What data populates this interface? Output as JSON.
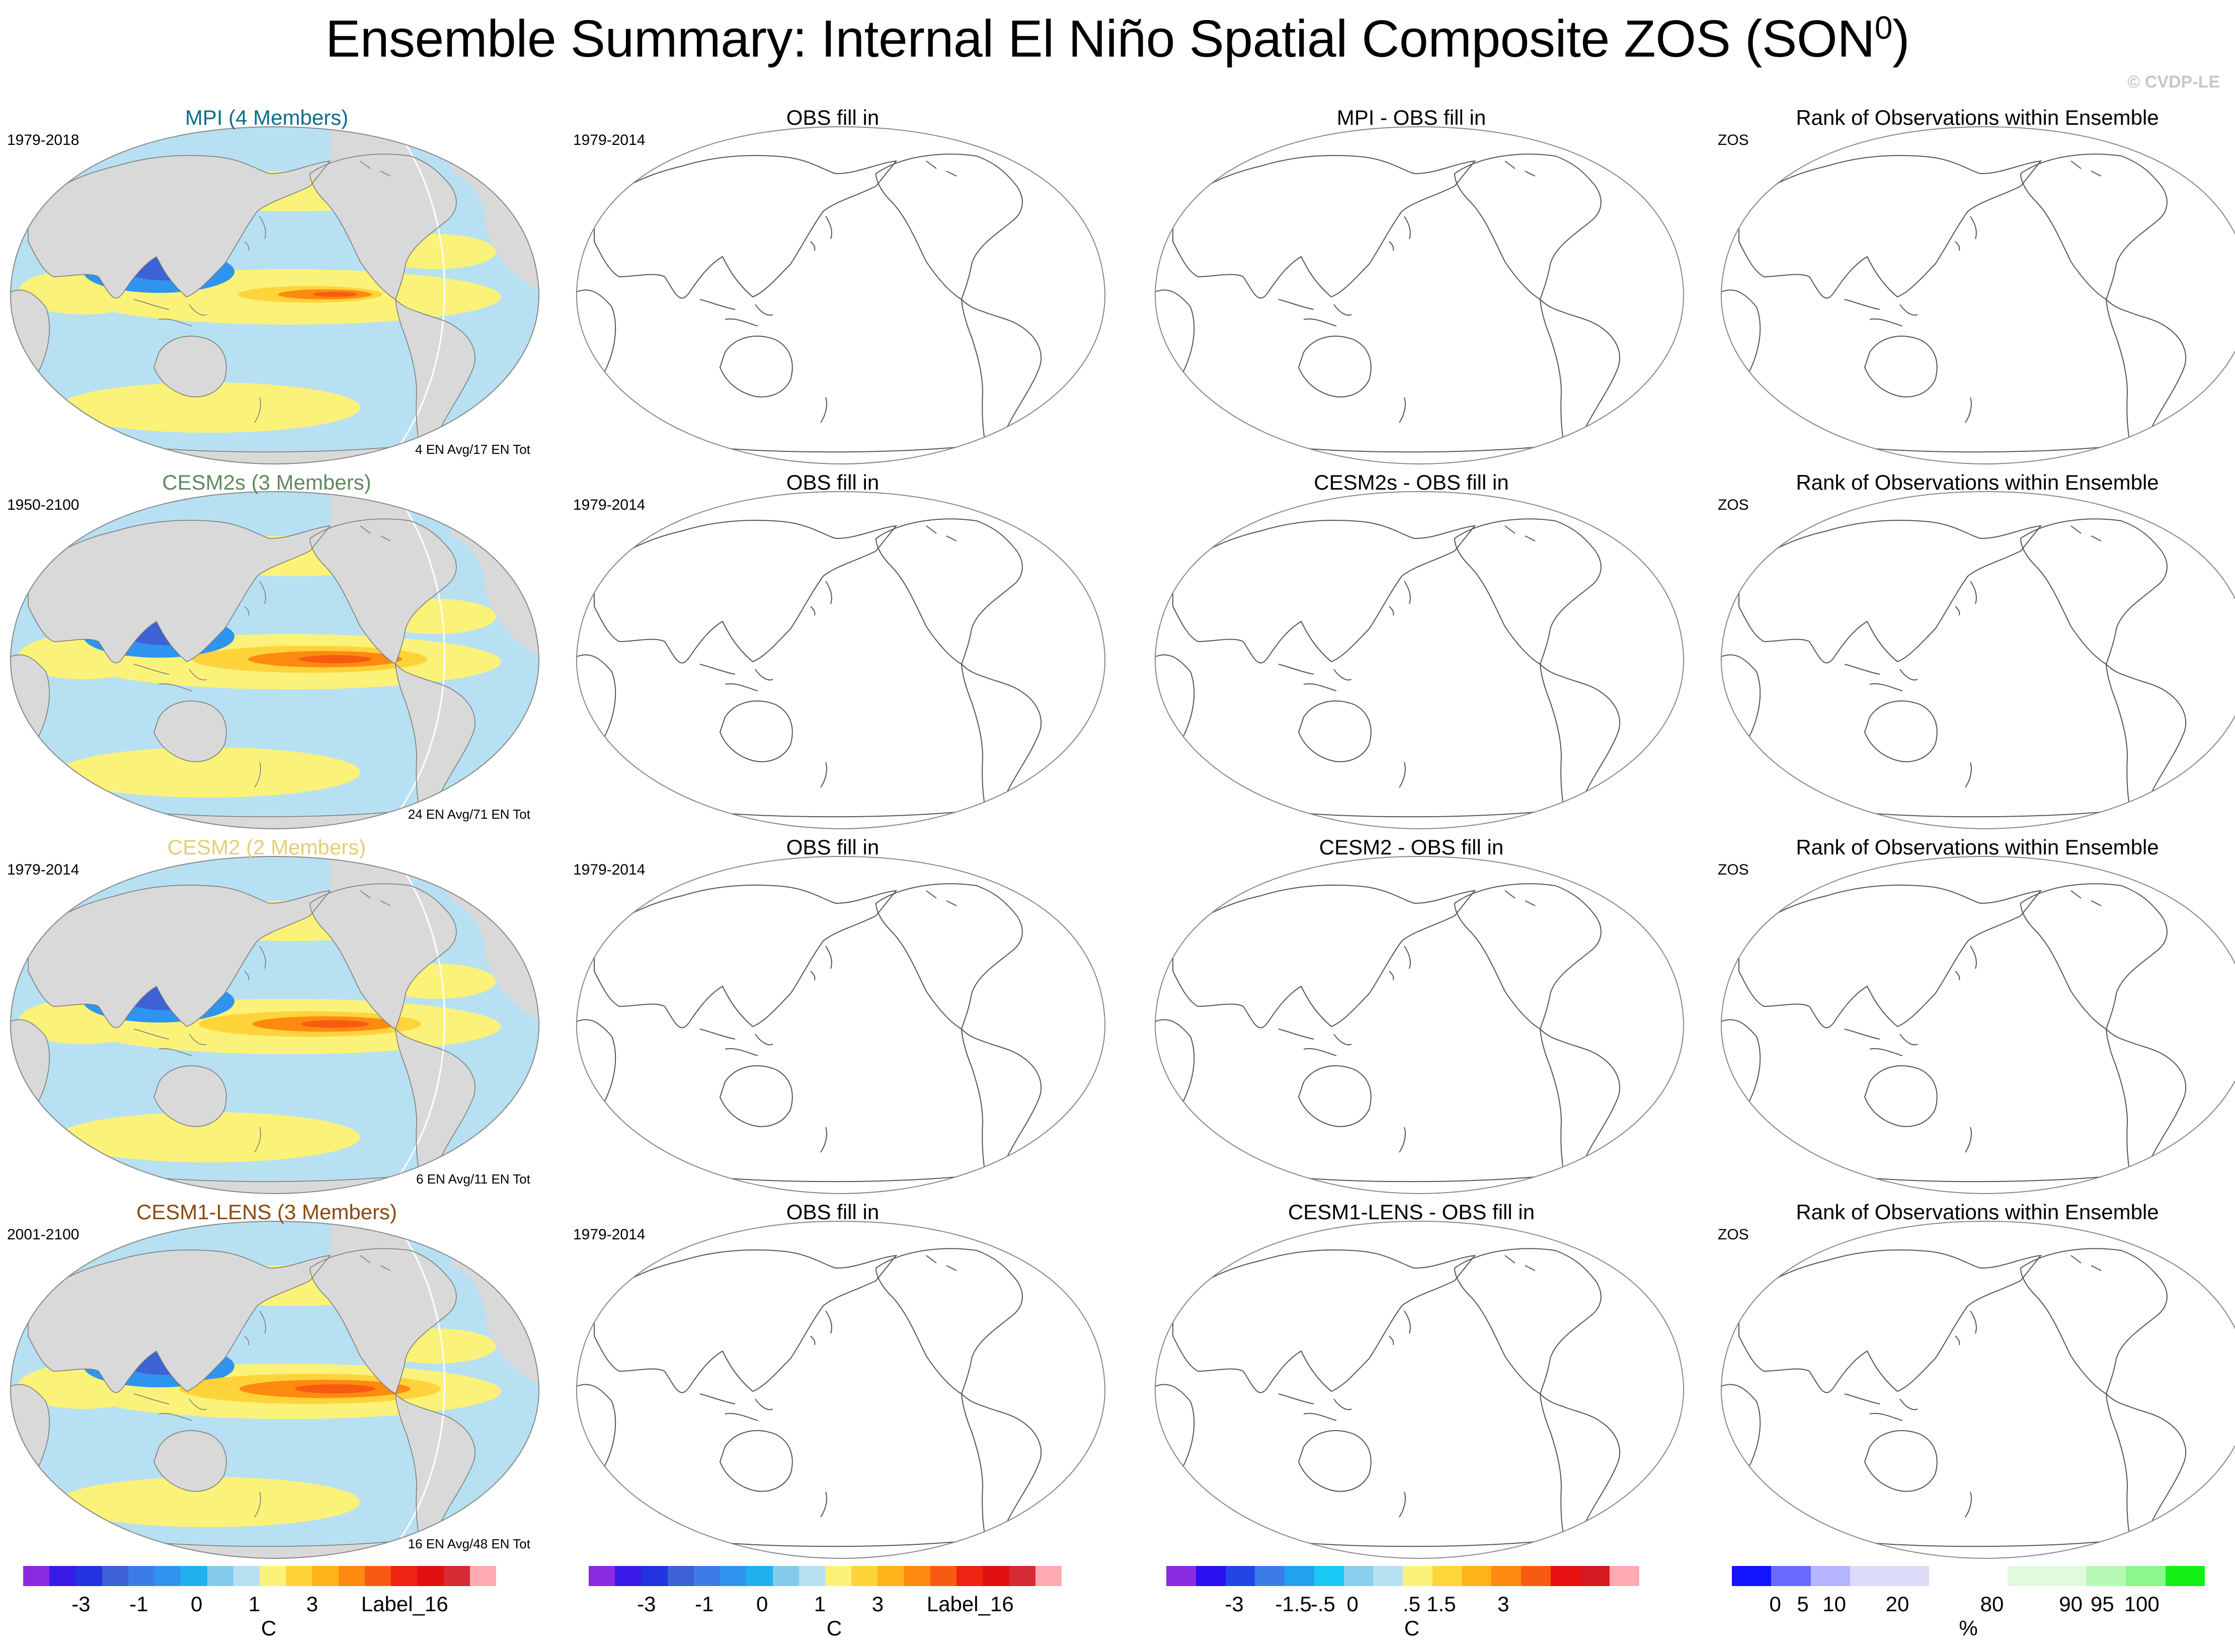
{
  "title": "Ensemble Summary: Internal El Niño Spatial Composite ZOS (SON",
  "title_sup": "0",
  "title_close": ")",
  "credit": "© CVDP-LE",
  "rows": [
    {
      "model": {
        "title": "MPI (4 Members)",
        "color": "#0d6e8a",
        "period": "1979-2018",
        "count": "4 EN Avg/17 EN Tot"
      },
      "obs": {
        "title": "OBS fill in",
        "period": "1979-2014"
      },
      "diff": {
        "title": "MPI - OBS fill in"
      },
      "rank": {
        "title": "Rank of Observations within Ensemble",
        "var": "ZOS"
      }
    },
    {
      "model": {
        "title": "CESM2s (3 Members)",
        "color": "#5f8a5f",
        "period": "1950-2100",
        "count": "24 EN Avg/71 EN Tot"
      },
      "obs": {
        "title": "OBS fill in",
        "period": "1979-2014"
      },
      "diff": {
        "title": "CESM2s - OBS fill in"
      },
      "rank": {
        "title": "Rank of Observations within Ensemble",
        "var": "ZOS"
      }
    },
    {
      "model": {
        "title": "CESM2 (2 Members)",
        "color": "#e2cf78",
        "period": "1979-2014",
        "count": "6 EN Avg/11 EN Tot"
      },
      "obs": {
        "title": "OBS fill in",
        "period": "1979-2014"
      },
      "diff": {
        "title": "CESM2 - OBS fill in"
      },
      "rank": {
        "title": "Rank of Observations within Ensemble",
        "var": "ZOS"
      }
    },
    {
      "model": {
        "title": "CESM1-LENS (3 Members)",
        "color": "#8a4a12",
        "period": "2001-2100",
        "count": "16 EN Avg/48 EN Tot"
      },
      "obs": {
        "title": "OBS fill in",
        "period": "1979-2014"
      },
      "diff": {
        "title": "CESM1-LENS - OBS fill in"
      },
      "rank": {
        "title": "Rank of Observations within Ensemble",
        "var": "ZOS"
      }
    }
  ],
  "colorbars": [
    {
      "colors": [
        "#8a2be2",
        "#3a1ae6",
        "#2233e0",
        "#3c62d6",
        "#3c7ce8",
        "#2f94ef",
        "#20b0f0",
        "#84cbeb",
        "#b7e0f2",
        "#fbf27a",
        "#ffd33a",
        "#ffb21a",
        "#ff8a10",
        "#f75b12",
        "#ee2412",
        "#e00f10",
        "#d42b35",
        "#ffaab0"
      ],
      "labels": [
        "-3",
        "-1",
        "0",
        "1",
        "3",
        "Label_16"
      ],
      "unit": "C"
    },
    {
      "colors": [
        "#8a2be2",
        "#3a1ae6",
        "#2233e0",
        "#3c62d6",
        "#3c7ce8",
        "#2f94ef",
        "#20b0f0",
        "#84cbeb",
        "#b7e0f2",
        "#fbf27a",
        "#ffd33a",
        "#ffb21a",
        "#ff8a10",
        "#f75b12",
        "#ee2412",
        "#e00f10",
        "#d42b35",
        "#ffaab0"
      ],
      "labels": [
        "-3",
        "-1",
        "0",
        "1",
        "3",
        "Label_16"
      ],
      "unit": "C"
    },
    {
      "colors": [
        "#8a2be2",
        "#2a10f0",
        "#2246e6",
        "#3c7ce8",
        "#20a2f0",
        "#18c8f5",
        "#8ad0ee",
        "#b7e0f2",
        "#fbf27a",
        "#ffd63a",
        "#ffb21a",
        "#ff8a10",
        "#f75b12",
        "#e61010",
        "#d41a20",
        "#ffaab0"
      ],
      "labels": [
        "-3",
        "-1.5",
        "-.5",
        "0",
        ".5",
        "1.5",
        "3"
      ],
      "unit": "C"
    },
    {
      "colors": [
        "#1414ff",
        "#6a6aff",
        "#b4b4ff",
        "#dcdcf8",
        "#dcdcf8",
        "#ffffff",
        "#ffffff",
        "#e0fae0",
        "#e0fae0",
        "#b4f8b4",
        "#8af88a",
        "#14f014"
      ],
      "labels": [
        "0",
        "5",
        "10",
        "20",
        "80",
        "90",
        "95",
        "100"
      ],
      "unit": "%"
    }
  ]
}
